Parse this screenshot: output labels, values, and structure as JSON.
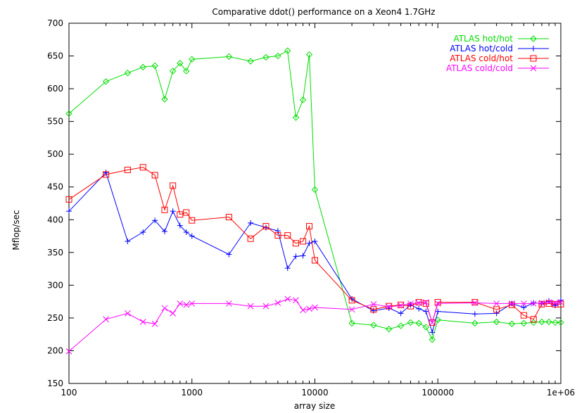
{
  "chart_data": {
    "type": "line",
    "title": "Comparative ddot() performance on a Xeon4 1.7GHz",
    "xlabel": "array size",
    "ylabel": "Mflop/sec",
    "xscale": "log",
    "xlim": [
      100,
      1000000
    ],
    "ylim": [
      150,
      700
    ],
    "x_ticks": [
      100,
      1000,
      10000,
      100000,
      1000000
    ],
    "x_tick_labels": [
      "100",
      "1000",
      "10000",
      "100000",
      "1e+06"
    ],
    "y_ticks": [
      150,
      200,
      250,
      300,
      350,
      400,
      450,
      500,
      550,
      600,
      650,
      700
    ],
    "y_tick_labels": [
      "150",
      "200",
      "250",
      "300",
      "350",
      "400",
      "450",
      "500",
      "550",
      "600",
      "650",
      "700"
    ],
    "grid": false,
    "legend_position": "top-right",
    "series": [
      {
        "name": "ATLAS hot/hot",
        "color": "#00dd00",
        "marker": "diamond",
        "x": [
          100,
          200,
          300,
          400,
          500,
          600,
          700,
          800,
          900,
          1000,
          2000,
          3000,
          4000,
          5000,
          6000,
          7000,
          8000,
          9000,
          10000,
          20000,
          30000,
          40000,
          50000,
          60000,
          70000,
          80000,
          90000,
          100000,
          200000,
          300000,
          400000,
          500000,
          600000,
          700000,
          800000,
          900000,
          1000000
        ],
        "values": [
          562,
          611,
          624,
          633,
          635,
          584,
          627,
          639,
          627,
          645,
          649,
          642,
          648,
          650,
          658,
          556,
          583,
          652,
          446,
          242,
          239,
          233,
          238,
          243,
          242,
          236,
          217,
          247,
          242,
          244,
          241,
          242,
          243,
          244,
          244,
          243,
          243
        ]
      },
      {
        "name": "ATLAS hot/cold",
        "color": "#0000ff",
        "marker": "plus",
        "x": [
          100,
          200,
          300,
          400,
          500,
          600,
          700,
          800,
          900,
          1000,
          2000,
          3000,
          4000,
          5000,
          6000,
          7000,
          8000,
          9000,
          10000,
          20000,
          30000,
          40000,
          50000,
          60000,
          70000,
          80000,
          90000,
          100000,
          200000,
          300000,
          400000,
          500000,
          600000,
          700000,
          800000,
          900000,
          1000000
        ],
        "values": [
          413,
          472,
          367,
          381,
          399,
          382,
          413,
          391,
          381,
          375,
          347,
          395,
          388,
          383,
          326,
          344,
          345,
          364,
          367,
          279,
          261,
          265,
          257,
          270,
          264,
          260,
          228,
          260,
          256,
          257,
          272,
          266,
          273,
          272,
          276,
          269,
          277
        ]
      },
      {
        "name": "ATLAS cold/hot",
        "color": "#ff0000",
        "marker": "square",
        "x": [
          100,
          200,
          300,
          400,
          500,
          600,
          700,
          800,
          900,
          1000,
          2000,
          3000,
          4000,
          5000,
          6000,
          7000,
          8000,
          9000,
          10000,
          20000,
          30000,
          40000,
          50000,
          60000,
          70000,
          80000,
          90000,
          100000,
          200000,
          300000,
          400000,
          500000,
          600000,
          700000,
          800000,
          900000,
          1000000
        ],
        "values": [
          431,
          469,
          476,
          480,
          468,
          415,
          452,
          408,
          411,
          399,
          404,
          371,
          390,
          376,
          376,
          364,
          367,
          390,
          338,
          277,
          263,
          268,
          270,
          268,
          274,
          272,
          243,
          274,
          274,
          263,
          270,
          254,
          248,
          271,
          272,
          271,
          271
        ]
      },
      {
        "name": "ATLAS cold/cold",
        "color": "#ff00ff",
        "marker": "cross",
        "x": [
          100,
          200,
          300,
          400,
          500,
          600,
          700,
          800,
          900,
          1000,
          2000,
          3000,
          4000,
          5000,
          6000,
          7000,
          8000,
          9000,
          10000,
          20000,
          30000,
          40000,
          50000,
          60000,
          70000,
          80000,
          90000,
          100000,
          200000,
          300000,
          400000,
          500000,
          600000,
          700000,
          800000,
          900000,
          1000000
        ],
        "values": [
          199,
          248,
          257,
          244,
          241,
          265,
          257,
          272,
          270,
          272,
          272,
          268,
          268,
          273,
          279,
          277,
          262,
          264,
          266,
          263,
          271,
          267,
          269,
          272,
          273,
          274,
          243,
          272,
          273,
          272,
          272,
          272,
          272,
          273,
          274,
          273,
          274
        ]
      }
    ]
  }
}
